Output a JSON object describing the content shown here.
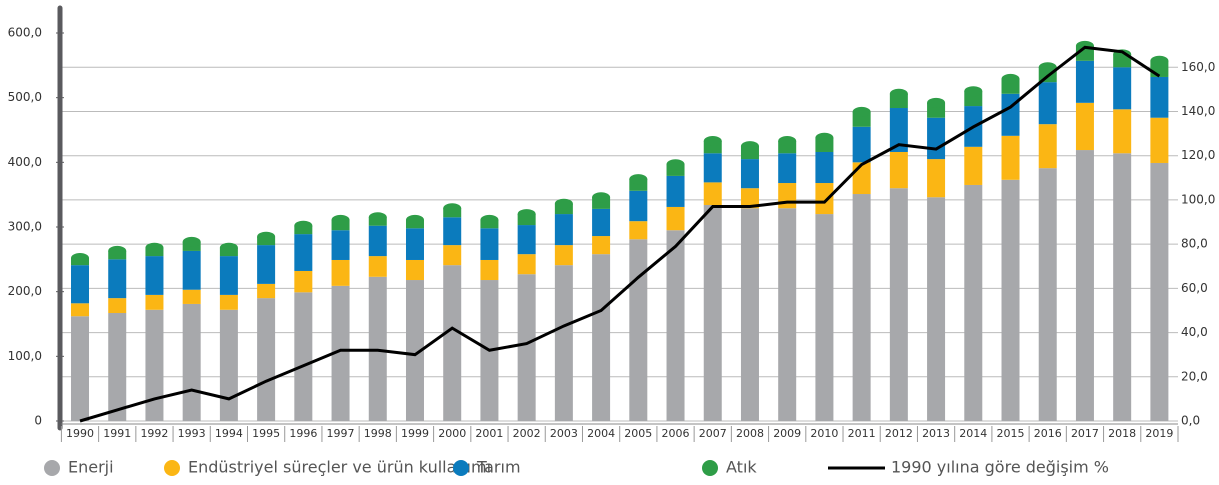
{
  "chart_data": {
    "type": "bar",
    "categories": [
      "1990",
      "1991",
      "1992",
      "1993",
      "1994",
      "1995",
      "1996",
      "1997",
      "1998",
      "1999",
      "2000",
      "2001",
      "2002",
      "2003",
      "2004",
      "2005",
      "2006",
      "2007",
      "2008",
      "2009",
      "2010",
      "2011",
      "2012",
      "2013",
      "2014",
      "2015",
      "2016",
      "2017",
      "2018",
      "2019"
    ],
    "stacked": true,
    "series": [
      {
        "name": "Enerji",
        "color": "#a7a8ab",
        "values": [
          162,
          167,
          172,
          181,
          172,
          190,
          199,
          209,
          223,
          218,
          241,
          218,
          227,
          241,
          258,
          281,
          295,
          334,
          329,
          329,
          320,
          351,
          360,
          346,
          365,
          373,
          391,
          419,
          414,
          399
        ]
      },
      {
        "name": "Endüstriyel süreçler ve ürün kullanımı",
        "color": "#fbb614",
        "values": [
          20,
          23,
          23,
          22,
          23,
          22,
          33,
          40,
          32,
          31,
          31,
          31,
          31,
          31,
          28,
          28,
          36,
          35,
          31,
          39,
          48,
          49,
          56,
          59,
          59,
          68,
          68,
          73,
          68,
          70
        ]
      },
      {
        "name": "Tarım",
        "color": "#0b7bbd",
        "values": [
          59,
          60,
          60,
          60,
          60,
          60,
          57,
          46,
          47,
          49,
          43,
          49,
          45,
          48,
          42,
          47,
          48,
          45,
          45,
          46,
          48,
          55,
          68,
          64,
          63,
          65,
          65,
          65,
          65,
          63
        ]
      },
      {
        "name": "Atık",
        "color": "#2e9d47",
        "values": [
          11,
          13,
          13,
          14,
          13,
          13,
          13,
          16,
          13,
          13,
          14,
          13,
          17,
          16,
          18,
          18,
          18,
          19,
          20,
          19,
          22,
          23,
          22,
          23,
          23,
          23,
          23,
          23,
          20,
          25
        ]
      },
      {
        "name": "1990 yılına göre değişim %",
        "color": "#000000",
        "type": "line",
        "axis": "y2",
        "values": [
          0,
          5,
          10,
          14,
          10,
          18,
          25,
          32,
          32,
          30,
          42,
          32,
          35,
          43,
          50,
          65,
          79,
          97,
          97,
          99,
          99,
          116,
          125,
          123,
          133,
          142,
          156,
          169,
          167,
          156
        ]
      }
    ],
    "ylim": [
      0,
      600
    ],
    "yticks": [
      0,
      {
        "value": 100,
        "label": "100,0"
      },
      {
        "value": 200,
        "label": "200,0"
      },
      {
        "value": 300,
        "label": "300,0"
      },
      {
        "value": 400,
        "label": "400,0"
      },
      {
        "value": 500,
        "label": "500,0"
      },
      {
        "value": 600,
        "label": "600,0"
      }
    ],
    "y2lim": [
      0,
      175.5
    ],
    "y2ticks": [
      {
        "value": 0,
        "label": "0,0"
      },
      {
        "value": 20,
        "label": "20,0"
      },
      {
        "value": 40,
        "label": "40,0"
      },
      {
        "value": 60,
        "label": "60,0"
      },
      {
        "value": 80,
        "label": "80,0"
      },
      {
        "value": 100,
        "label": "100,0"
      },
      {
        "value": 120,
        "label": "120,0"
      },
      {
        "value": 140,
        "label": "140,0"
      },
      {
        "value": 160,
        "label": "160,0"
      }
    ],
    "grid": true
  }
}
